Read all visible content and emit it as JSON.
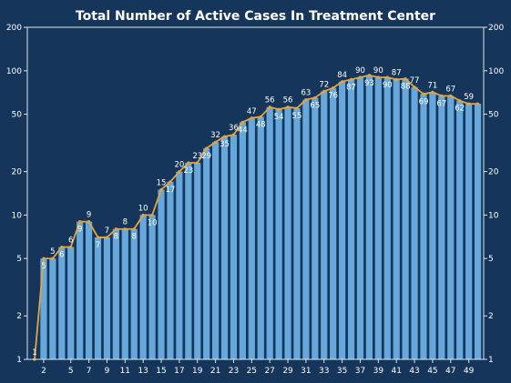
{
  "chart_data": {
    "type": "bar",
    "title": "Total Number of Active Cases In Treatment Center",
    "xlabel": "",
    "ylabel": "",
    "y_scale": "log",
    "ylim": [
      1,
      200
    ],
    "y_ticks": [
      1,
      2,
      5,
      10,
      20,
      50,
      100,
      200
    ],
    "x_ticks": [
      2,
      5,
      7,
      9,
      11,
      13,
      15,
      17,
      19,
      21,
      23,
      25,
      27,
      29,
      31,
      33,
      35,
      37,
      39,
      41,
      43,
      45,
      47,
      49
    ],
    "grid": false,
    "x": [
      1,
      2,
      3,
      4,
      5,
      6,
      7,
      8,
      9,
      10,
      11,
      12,
      13,
      14,
      15,
      16,
      17,
      18,
      19,
      20,
      21,
      22,
      23,
      24,
      25,
      26,
      27,
      28,
      29,
      30,
      31,
      32,
      33,
      34,
      35,
      36,
      37,
      38,
      39,
      40,
      41,
      42,
      43,
      44,
      45,
      46,
      47,
      48,
      49,
      50
    ],
    "values": [
      1,
      5,
      5,
      6,
      6,
      9,
      9,
      7,
      7,
      8,
      8,
      8,
      10,
      10,
      15,
      17,
      20,
      23,
      23,
      29,
      32,
      35,
      36,
      44,
      47,
      48,
      56,
      54,
      56,
      55,
      63,
      65,
      72,
      76,
      84,
      87,
      90,
      93,
      90,
      90,
      87,
      88,
      77,
      69,
      71,
      67,
      67,
      62,
      59,
      59
    ],
    "data_labels": [
      1,
      5,
      5,
      6,
      6,
      9,
      9,
      7,
      7,
      8,
      8,
      8,
      10,
      10,
      15,
      17,
      20,
      23,
      23,
      29,
      32,
      35,
      36,
      44,
      47,
      48,
      56,
      54,
      56,
      55,
      63,
      65,
      72,
      76,
      84,
      87,
      90,
      93,
      90,
      90,
      87,
      88,
      77,
      69,
      71,
      67,
      67,
      62,
      59,
      null
    ],
    "series": [
      {
        "kind": "bar",
        "color": "#66a8dc"
      },
      {
        "kind": "line",
        "color": "#e8a43c"
      }
    ],
    "colors": {
      "background": "#15365a",
      "text": "#ffffff",
      "axis": "#dfe6ee"
    }
  }
}
